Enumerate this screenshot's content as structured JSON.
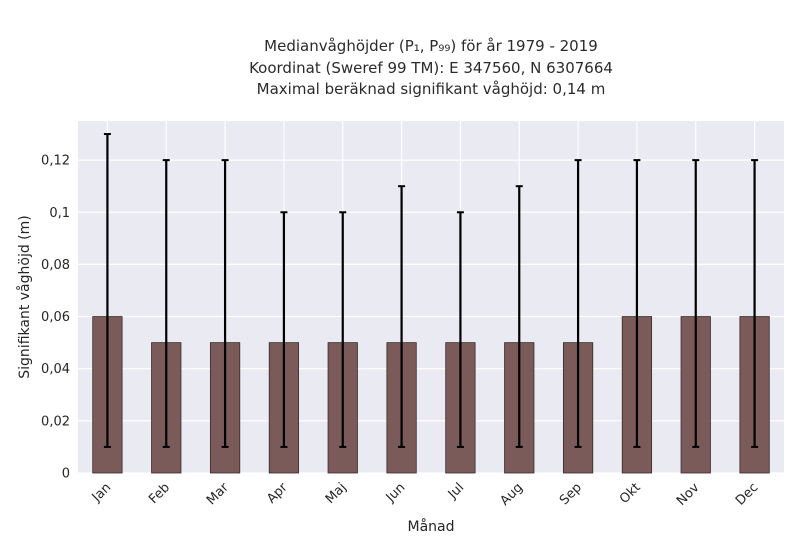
{
  "title_lines": [
    "Medianvåghöjder (P₁, P₉₉) för år 1979 - 2019",
    "Koordinat (Sweref 99 TM): E 347560, N 6307664",
    "Maximal beräknad signifikant våghöjd: 0,14 m"
  ],
  "chart_data": {
    "type": "bar",
    "categories": [
      "Jan",
      "Feb",
      "Mar",
      "Apr",
      "Maj",
      "Jun",
      "Jul",
      "Aug",
      "Sep",
      "Okt",
      "Nov",
      "Dec"
    ],
    "series": [
      {
        "values": [
          0.06,
          0.05,
          0.05,
          0.05,
          0.05,
          0.05,
          0.05,
          0.05,
          0.05,
          0.06,
          0.06,
          0.06
        ],
        "error_low": [
          0.01,
          0.01,
          0.01,
          0.01,
          0.01,
          0.01,
          0.01,
          0.01,
          0.01,
          0.01,
          0.01,
          0.01
        ],
        "error_high": [
          0.13,
          0.12,
          0.12,
          0.1,
          0.1,
          0.11,
          0.1,
          0.11,
          0.12,
          0.12,
          0.12,
          0.12
        ]
      }
    ],
    "xlabel": "Månad",
    "ylabel": "Signifikant våghöjd (m)",
    "ylim": [
      0,
      0.135
    ],
    "yticks": [
      0,
      0.02,
      0.04,
      0.06,
      0.08,
      0.1,
      0.12
    ],
    "ytick_labels": [
      "0",
      "0,02",
      "0,04",
      "0,06",
      "0,08",
      "0,1",
      "0,12"
    ],
    "grid": true,
    "colors": {
      "bar": "#7b5a5a",
      "bar_edge": "#3a2a2a",
      "error": "#000000",
      "background": "#eaeaf2",
      "grid": "#ffffff"
    }
  }
}
